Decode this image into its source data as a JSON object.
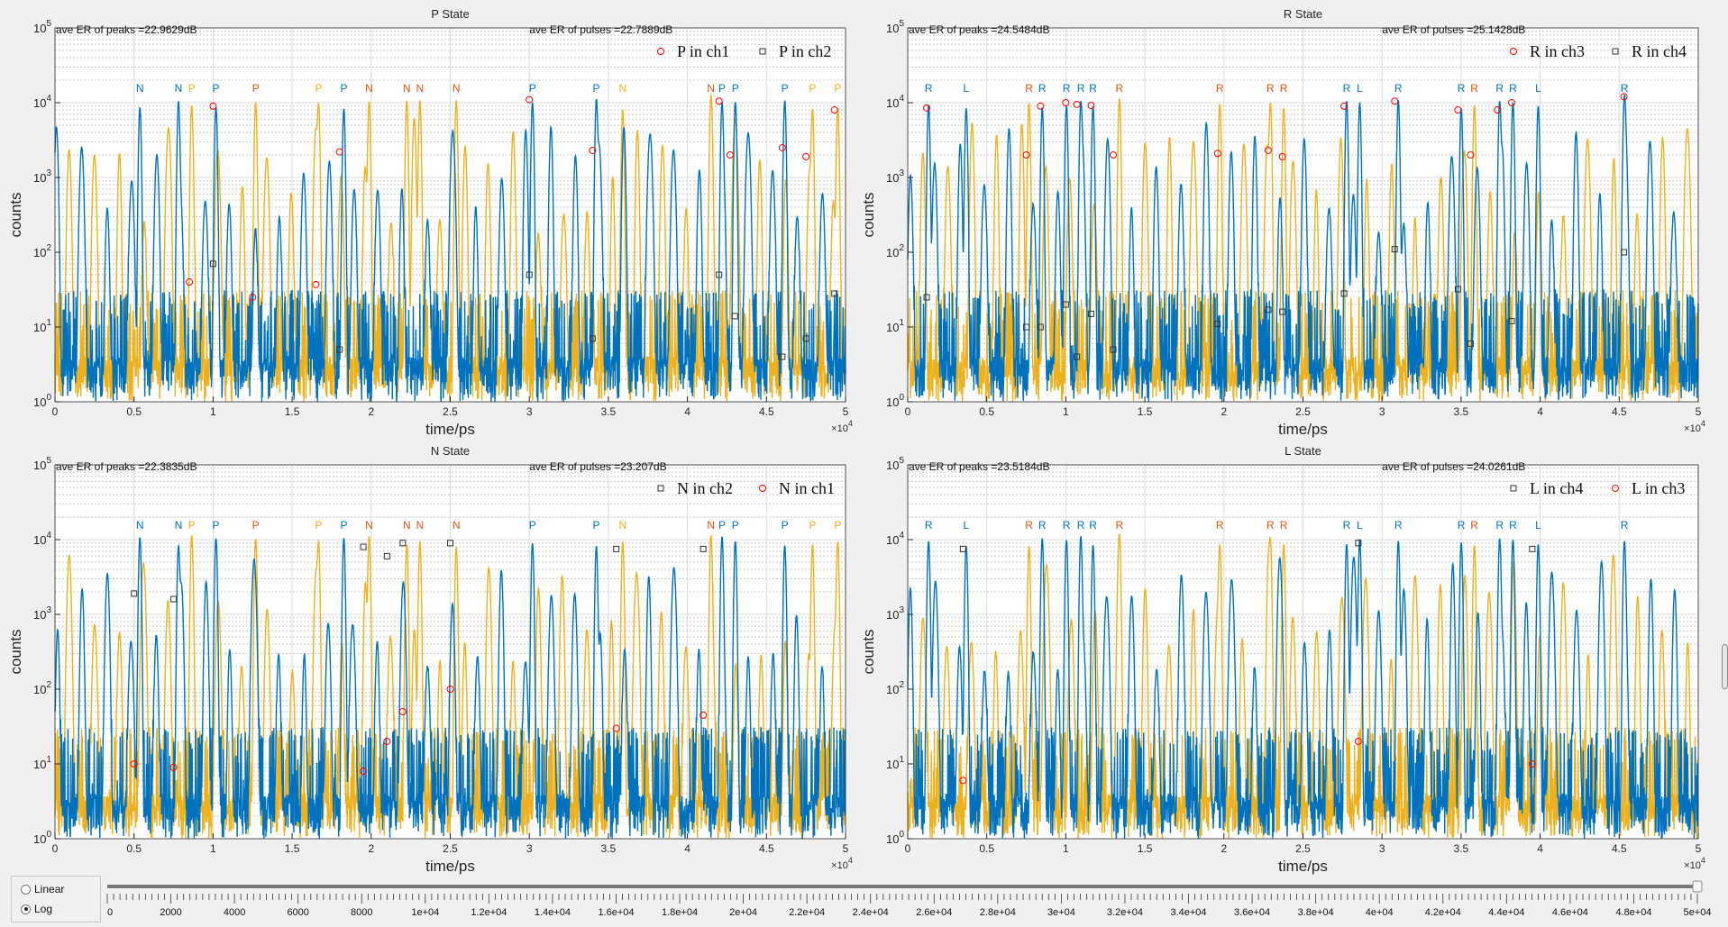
{
  "colors": {
    "ch_blue": "#0072BD",
    "ch_yellow": "#EDB120",
    "label_red": "#D95319",
    "marker_red": "#FF0000",
    "marker_black": "#000000"
  },
  "chart_data": [
    {
      "type": "line",
      "title": "P State",
      "er_peaks": "ave ER of peaks =22.9629dB",
      "er_pulses": "ave ER of pulses =22.7889dB",
      "xlabel": "time/ps",
      "ylabel": "counts",
      "x_exponent": "×10",
      "xlim": [
        0,
        50000
      ],
      "ylim": [
        1,
        100000
      ],
      "yscale": "log",
      "grid": true,
      "legend_placement": "top-right",
      "legend": [
        {
          "label": "P in ch1",
          "marker": "circle"
        },
        {
          "label": "P in ch2",
          "marker": "square"
        }
      ],
      "peak_labels": [
        {
          "x": 5370,
          "text": "N",
          "color": "blue"
        },
        {
          "x": 7810,
          "text": "N",
          "color": "blue"
        },
        {
          "x": 8650,
          "text": "P",
          "color": "yellow"
        },
        {
          "x": 10180,
          "text": "P",
          "color": "blue"
        },
        {
          "x": 12690,
          "text": "P",
          "color": "red"
        },
        {
          "x": 16670,
          "text": "P",
          "color": "yellow"
        },
        {
          "x": 18270,
          "text": "P",
          "color": "blue"
        },
        {
          "x": 19870,
          "text": "N",
          "color": "red"
        },
        {
          "x": 22250,
          "text": "N",
          "color": "red"
        },
        {
          "x": 23080,
          "text": "N",
          "color": "red"
        },
        {
          "x": 25380,
          "text": "N",
          "color": "red"
        },
        {
          "x": 30200,
          "text": "P",
          "color": "blue"
        },
        {
          "x": 34240,
          "text": "P",
          "color": "blue"
        },
        {
          "x": 35910,
          "text": "N",
          "color": "yellow"
        },
        {
          "x": 41490,
          "text": "N",
          "color": "red"
        },
        {
          "x": 42190,
          "text": "P",
          "color": "blue"
        },
        {
          "x": 43030,
          "text": "P",
          "color": "blue"
        },
        {
          "x": 46160,
          "text": "P",
          "color": "blue"
        },
        {
          "x": 47910,
          "text": "P",
          "color": "yellow"
        },
        {
          "x": 49510,
          "text": "P",
          "color": "yellow"
        }
      ],
      "circle_points": [
        [
          10000,
          9000
        ],
        [
          8500,
          40
        ],
        [
          12500,
          25
        ],
        [
          16500,
          37
        ],
        [
          18000,
          2200
        ],
        [
          30000,
          11000
        ],
        [
          34000,
          2300
        ],
        [
          42000,
          10500
        ],
        [
          42700,
          2000
        ],
        [
          46000,
          2500
        ],
        [
          47500,
          1900
        ],
        [
          49300,
          8000
        ]
      ],
      "square_points": [
        [
          10000,
          70
        ],
        [
          18000,
          5
        ],
        [
          30000,
          50
        ],
        [
          34000,
          7
        ],
        [
          42000,
          50
        ],
        [
          43000,
          14
        ],
        [
          46000,
          4
        ],
        [
          47500,
          7
        ],
        [
          49300,
          28
        ]
      ]
    },
    {
      "type": "line",
      "title": "R State",
      "er_peaks": "ave ER of peaks =24.5484dB",
      "er_pulses": "ave ER of pulses =25.1428dB",
      "xlabel": "time/ps",
      "ylabel": "counts",
      "x_exponent": "×10",
      "xlim": [
        0,
        50000
      ],
      "ylim": [
        1,
        100000
      ],
      "yscale": "log",
      "grid": true,
      "legend_placement": "top-right",
      "legend": [
        {
          "label": "R in ch3",
          "marker": "circle"
        },
        {
          "label": "R in ch4",
          "marker": "square"
        }
      ],
      "peak_labels": [
        {
          "x": 1320,
          "text": "R",
          "color": "blue"
        },
        {
          "x": 3700,
          "text": "L",
          "color": "blue"
        },
        {
          "x": 7670,
          "text": "R",
          "color": "red"
        },
        {
          "x": 8510,
          "text": "R",
          "color": "blue"
        },
        {
          "x": 10040,
          "text": "R",
          "color": "blue"
        },
        {
          "x": 10950,
          "text": "R",
          "color": "blue"
        },
        {
          "x": 11720,
          "text": "R",
          "color": "blue"
        },
        {
          "x": 13390,
          "text": "R",
          "color": "red"
        },
        {
          "x": 19740,
          "text": "R",
          "color": "red"
        },
        {
          "x": 22940,
          "text": "R",
          "color": "red"
        },
        {
          "x": 23780,
          "text": "R",
          "color": "red"
        },
        {
          "x": 27760,
          "text": "R",
          "color": "blue"
        },
        {
          "x": 28590,
          "text": "L",
          "color": "blue"
        },
        {
          "x": 31030,
          "text": "R",
          "color": "blue"
        },
        {
          "x": 35010,
          "text": "R",
          "color": "blue"
        },
        {
          "x": 35840,
          "text": "R",
          "color": "red"
        },
        {
          "x": 37440,
          "text": "R",
          "color": "blue"
        },
        {
          "x": 38280,
          "text": "R",
          "color": "blue"
        },
        {
          "x": 39880,
          "text": "L",
          "color": "blue"
        },
        {
          "x": 45330,
          "text": "R",
          "color": "blue"
        }
      ],
      "circle_points": [
        [
          1200,
          8500
        ],
        [
          7500,
          2000
        ],
        [
          8400,
          9000
        ],
        [
          10000,
          10000
        ],
        [
          10700,
          9500
        ],
        [
          11600,
          9200
        ],
        [
          13000,
          2000
        ],
        [
          19600,
          2100
        ],
        [
          22800,
          2300
        ],
        [
          23700,
          1900
        ],
        [
          27600,
          9000
        ],
        [
          30800,
          10500
        ],
        [
          34800,
          8000
        ],
        [
          35600,
          2000
        ],
        [
          37300,
          8000
        ],
        [
          38200,
          10000
        ],
        [
          45300,
          12000
        ]
      ],
      "square_points": [
        [
          1200,
          25
        ],
        [
          7500,
          10
        ],
        [
          8400,
          10
        ],
        [
          10000,
          20
        ],
        [
          10700,
          4
        ],
        [
          11600,
          15
        ],
        [
          13000,
          5
        ],
        [
          19600,
          11
        ],
        [
          22800,
          17
        ],
        [
          23700,
          16
        ],
        [
          27600,
          28
        ],
        [
          30800,
          110
        ],
        [
          34800,
          32
        ],
        [
          35600,
          6
        ],
        [
          38200,
          12
        ],
        [
          45300,
          100
        ]
      ]
    },
    {
      "type": "line",
      "title": "N State",
      "er_peaks": "ave ER of peaks =22.3835dB",
      "er_pulses": "ave ER of pulses =23.207dB",
      "xlabel": "time/ps",
      "ylabel": "counts",
      "x_exponent": "×10",
      "xlim": [
        0,
        50000
      ],
      "ylim": [
        1,
        100000
      ],
      "yscale": "log",
      "grid": true,
      "legend_placement": "top-right",
      "legend": [
        {
          "label": "N in ch2",
          "marker": "square"
        },
        {
          "label": "N in ch1",
          "marker": "circle"
        }
      ],
      "peak_labels": [
        {
          "x": 5370,
          "text": "N",
          "color": "blue"
        },
        {
          "x": 7810,
          "text": "N",
          "color": "blue"
        },
        {
          "x": 8650,
          "text": "P",
          "color": "yellow"
        },
        {
          "x": 10180,
          "text": "P",
          "color": "blue"
        },
        {
          "x": 12690,
          "text": "P",
          "color": "red"
        },
        {
          "x": 16670,
          "text": "P",
          "color": "yellow"
        },
        {
          "x": 18270,
          "text": "P",
          "color": "blue"
        },
        {
          "x": 19870,
          "text": "N",
          "color": "red"
        },
        {
          "x": 22250,
          "text": "N",
          "color": "red"
        },
        {
          "x": 23080,
          "text": "N",
          "color": "red"
        },
        {
          "x": 25380,
          "text": "N",
          "color": "red"
        },
        {
          "x": 30200,
          "text": "P",
          "color": "blue"
        },
        {
          "x": 34240,
          "text": "P",
          "color": "blue"
        },
        {
          "x": 35910,
          "text": "N",
          "color": "yellow"
        },
        {
          "x": 41490,
          "text": "N",
          "color": "red"
        },
        {
          "x": 42190,
          "text": "P",
          "color": "blue"
        },
        {
          "x": 43030,
          "text": "P",
          "color": "blue"
        },
        {
          "x": 46160,
          "text": "P",
          "color": "blue"
        },
        {
          "x": 47910,
          "text": "P",
          "color": "yellow"
        },
        {
          "x": 49510,
          "text": "P",
          "color": "yellow"
        }
      ],
      "circle_points": [
        [
          5000,
          10
        ],
        [
          7500,
          9
        ],
        [
          19500,
          8
        ],
        [
          21000,
          20
        ],
        [
          22000,
          50
        ],
        [
          25000,
          100
        ],
        [
          35500,
          30
        ],
        [
          41000,
          45
        ]
      ],
      "square_points": [
        [
          5000,
          1900
        ],
        [
          7500,
          1600
        ],
        [
          19500,
          8000
        ],
        [
          21000,
          6000
        ],
        [
          22000,
          9000
        ],
        [
          25000,
          9000
        ],
        [
          35500,
          7500
        ],
        [
          41000,
          7500
        ]
      ]
    },
    {
      "type": "line",
      "title": "L State",
      "er_peaks": "ave ER of peaks =23.5184dB",
      "er_pulses": "ave ER of pulses =24.0261dB",
      "xlabel": "time/ps",
      "ylabel": "counts",
      "x_exponent": "×10",
      "xlim": [
        0,
        50000
      ],
      "ylim": [
        1,
        100000
      ],
      "yscale": "log",
      "grid": true,
      "legend_placement": "top-right",
      "legend": [
        {
          "label": "L in ch4",
          "marker": "square"
        },
        {
          "label": "L in ch3",
          "marker": "circle"
        }
      ],
      "peak_labels": [
        {
          "x": 1320,
          "text": "R",
          "color": "blue"
        },
        {
          "x": 3700,
          "text": "L",
          "color": "blue"
        },
        {
          "x": 7670,
          "text": "R",
          "color": "red"
        },
        {
          "x": 8510,
          "text": "R",
          "color": "blue"
        },
        {
          "x": 10040,
          "text": "R",
          "color": "blue"
        },
        {
          "x": 10950,
          "text": "R",
          "color": "blue"
        },
        {
          "x": 11720,
          "text": "R",
          "color": "blue"
        },
        {
          "x": 13390,
          "text": "R",
          "color": "red"
        },
        {
          "x": 19740,
          "text": "R",
          "color": "red"
        },
        {
          "x": 22940,
          "text": "R",
          "color": "red"
        },
        {
          "x": 23780,
          "text": "R",
          "color": "red"
        },
        {
          "x": 27760,
          "text": "R",
          "color": "blue"
        },
        {
          "x": 28590,
          "text": "L",
          "color": "blue"
        },
        {
          "x": 31030,
          "text": "R",
          "color": "blue"
        },
        {
          "x": 35010,
          "text": "R",
          "color": "blue"
        },
        {
          "x": 35840,
          "text": "R",
          "color": "red"
        },
        {
          "x": 37440,
          "text": "R",
          "color": "blue"
        },
        {
          "x": 38280,
          "text": "R",
          "color": "blue"
        },
        {
          "x": 39880,
          "text": "L",
          "color": "blue"
        },
        {
          "x": 45330,
          "text": "R",
          "color": "blue"
        }
      ],
      "circle_points": [
        [
          3500,
          6
        ],
        [
          28500,
          20
        ],
        [
          39500,
          10
        ]
      ],
      "square_points": [
        [
          3500,
          7500
        ],
        [
          28500,
          9000
        ],
        [
          39500,
          7500
        ]
      ]
    }
  ],
  "xtick_labels": [
    "0",
    "0.5",
    "1",
    "1.5",
    "2",
    "2.5",
    "3",
    "3.5",
    "4",
    "4.5",
    "5"
  ],
  "x_exponent_power": "4",
  "scale_options": {
    "linear": "Linear",
    "log": "Log",
    "selected": "log"
  },
  "slider": {
    "min": 0,
    "max": 50000,
    "value": 50000,
    "tick_labels": [
      "0",
      "2000",
      "4000",
      "6000",
      "8000",
      "1e+04",
      "1.2e+04",
      "1.4e+04",
      "1.6e+04",
      "1.8e+04",
      "2e+04",
      "2.2e+04",
      "2.4e+04",
      "2.6e+04",
      "2.8e+04",
      "3e+04",
      "3.2e+04",
      "3.4e+04",
      "3.6e+04",
      "3.8e+04",
      "4e+04",
      "4.2e+04",
      "4.4e+04",
      "4.6e+04",
      "4.8e+04",
      "5e+04"
    ]
  }
}
